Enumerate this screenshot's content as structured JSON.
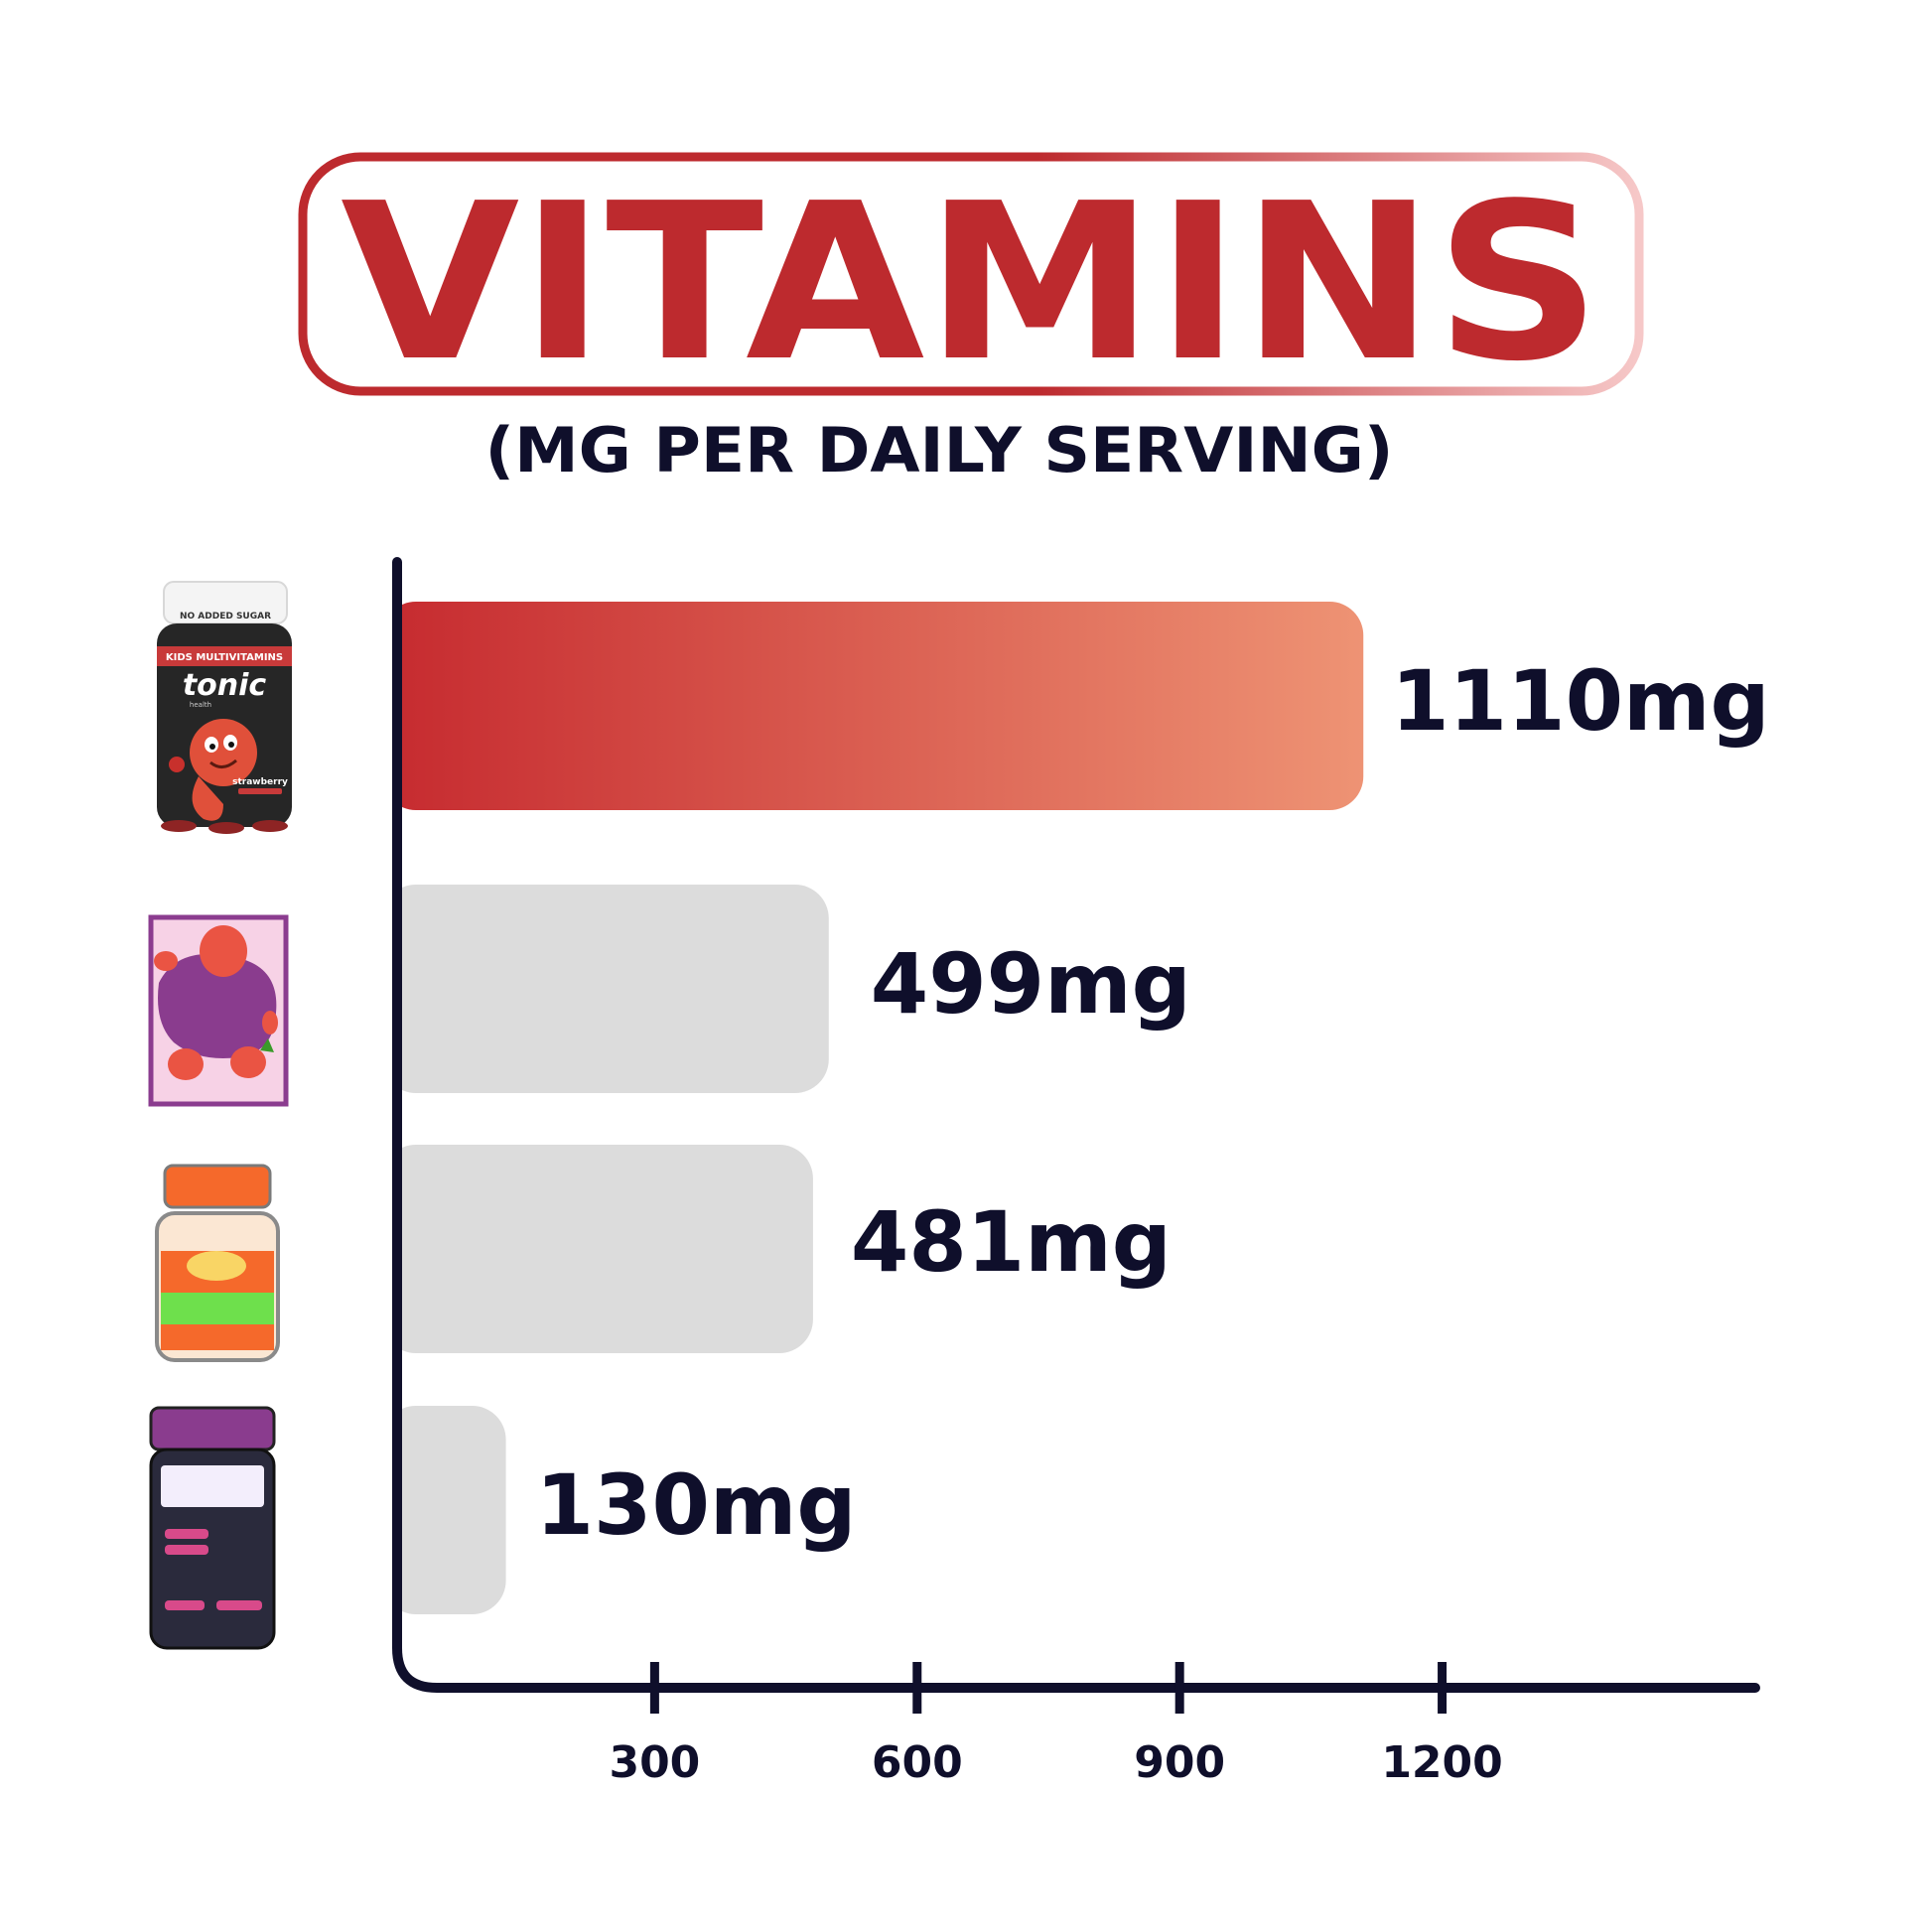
{
  "chart_data": {
    "type": "bar",
    "orientation": "horizontal",
    "title": "VITAMINS",
    "subtitle": "(MG PER DAILY SERVING)",
    "categories": [
      "tonic health kids multivitamins",
      "purple gummy pack",
      "orange-lid gummy jar",
      "purple-lid gummy jar"
    ],
    "values": [
      1110,
      499,
      481,
      130
    ],
    "value_labels": [
      "1110mg",
      "499mg",
      "481mg",
      "130mg"
    ],
    "x_ticks": [
      300,
      600,
      900,
      1200
    ],
    "x_tick_labels": [
      "300",
      "600",
      "900",
      "1200"
    ],
    "xlim": [
      0,
      1250
    ],
    "grid": false,
    "legend": "none",
    "highlight_index": 0
  },
  "product": {
    "cap_text": "NO ADDED SUGAR",
    "band_text": "KIDS MULTIVITAMINS",
    "brand": "tonic",
    "brand_sub": "health",
    "flavour": "strawberry"
  },
  "colors": {
    "title_red": "#bd2a2e",
    "frame_fade": "#f6c8c8",
    "highlight_start": "#c62a2f",
    "highlight_end": "#ee9374",
    "bar_grey": "#dcdcdc",
    "axis": "#0f0f2b",
    "label": "#0f0f2b"
  }
}
